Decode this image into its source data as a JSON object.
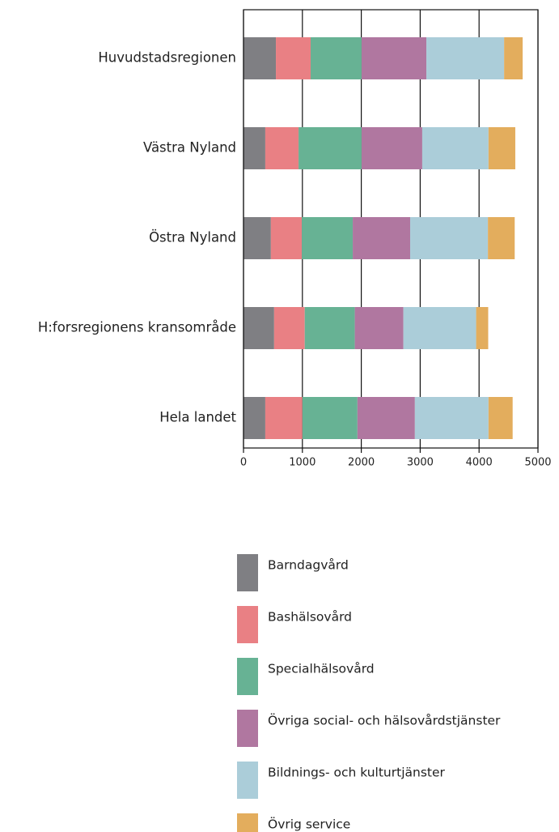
{
  "chart_data": {
    "type": "stacked_barh",
    "categories": [
      "Huvudstadsregionen",
      "Västra Nyland",
      "Östra Nyland",
      "H:forsregionens kransområde",
      "Hela landet"
    ],
    "series": [
      {
        "name": "Barndagvård",
        "color": "#7f7f83",
        "values": [
          550,
          370,
          465,
          520,
          370
        ]
      },
      {
        "name": "Bashälsovård",
        "color": "#e98084",
        "values": [
          590,
          565,
          525,
          520,
          630
        ]
      },
      {
        "name": "Specialhälsovård",
        "color": "#67b294",
        "values": [
          865,
          1070,
          865,
          850,
          935
        ]
      },
      {
        "name": "Övriga social- och hälsovårdstjänster",
        "color": "#b077a0",
        "values": [
          1100,
          1030,
          975,
          825,
          975
        ]
      },
      {
        "name": "Bildnings- och kulturtjänster",
        "color": "#abcdd9",
        "values": [
          1320,
          1125,
          1320,
          1235,
          1250
        ]
      },
      {
        "name": "Övrig service",
        "color": "#e3ad5d",
        "values": [
          315,
          455,
          455,
          205,
          410
        ]
      }
    ],
    "xlim": [
      0,
      5000
    ],
    "xticks": [
      0,
      1000,
      2000,
      3000,
      4000,
      5000
    ],
    "grid": true
  }
}
